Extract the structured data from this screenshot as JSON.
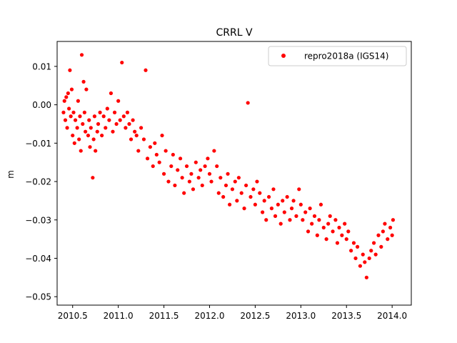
{
  "chart_data": {
    "type": "scatter",
    "title": "CRRL V",
    "xlabel": "",
    "ylabel": "m",
    "xlim": [
      2010.33,
      2014.21
    ],
    "ylim": [
      -0.0522,
      0.0165
    ],
    "xticks": [
      2010.5,
      2011.0,
      2011.5,
      2012.0,
      2012.5,
      2013.0,
      2013.5,
      2014.0
    ],
    "xtick_labels": [
      "2010.5",
      "2011.0",
      "2011.5",
      "2012.0",
      "2012.5",
      "2013.0",
      "2013.5",
      "2014.0"
    ],
    "yticks": [
      0.01,
      0.0,
      -0.01,
      -0.02,
      -0.03,
      -0.04,
      -0.05
    ],
    "ytick_labels": [
      "0.01",
      "0.00",
      "−0.01",
      "−0.02",
      "−0.03",
      "−0.04",
      "−0.05"
    ],
    "grid": false,
    "legend_position": "top-right",
    "marker_color": "#ff0000",
    "series": [
      {
        "name": "repro2018a (IGS14)",
        "color": "#ff0000",
        "x": [
          2010.4,
          2010.41,
          2010.42,
          2010.43,
          2010.44,
          2010.45,
          2010.46,
          2010.47,
          2010.48,
          2010.49,
          2010.5,
          2010.51,
          2010.52,
          2010.53,
          2010.55,
          2010.56,
          2010.57,
          2010.58,
          2010.59,
          2010.6,
          2010.61,
          2010.62,
          2010.63,
          2010.64,
          2010.65,
          2010.67,
          2010.68,
          2010.69,
          2010.7,
          2010.72,
          2010.73,
          2010.74,
          2010.75,
          2010.77,
          2010.78,
          2010.8,
          2010.82,
          2010.84,
          2010.86,
          2010.88,
          2010.9,
          2010.92,
          2010.94,
          2010.96,
          2010.98,
          2011.0,
          2011.02,
          2011.04,
          2011.06,
          2011.08,
          2011.1,
          2011.12,
          2011.14,
          2011.16,
          2011.18,
          2011.2,
          2011.22,
          2011.25,
          2011.28,
          2011.3,
          2011.32,
          2011.35,
          2011.38,
          2011.4,
          2011.42,
          2011.45,
          2011.48,
          2011.5,
          2011.52,
          2011.55,
          2011.58,
          2011.6,
          2011.62,
          2011.65,
          2011.68,
          2011.7,
          2011.72,
          2011.75,
          2011.78,
          2011.8,
          2011.82,
          2011.85,
          2011.88,
          2011.9,
          2011.92,
          2011.95,
          2011.98,
          2012.0,
          2012.02,
          2012.05,
          2012.08,
          2012.1,
          2012.12,
          2012.15,
          2012.18,
          2012.2,
          2012.22,
          2012.25,
          2012.28,
          2012.3,
          2012.32,
          2012.35,
          2012.38,
          2012.4,
          2012.42,
          2012.45,
          2012.48,
          2012.5,
          2012.52,
          2012.55,
          2012.58,
          2012.6,
          2012.62,
          2012.65,
          2012.68,
          2012.7,
          2012.72,
          2012.75,
          2012.78,
          2012.8,
          2012.82,
          2012.85,
          2012.88,
          2012.9,
          2012.92,
          2012.95,
          2012.98,
          2013.0,
          2013.02,
          2013.05,
          2013.08,
          2013.1,
          2013.12,
          2013.15,
          2013.18,
          2013.2,
          2013.22,
          2013.25,
          2013.28,
          2013.3,
          2013.32,
          2013.35,
          2013.38,
          2013.4,
          2013.42,
          2013.45,
          2013.48,
          2013.5,
          2013.52,
          2013.55,
          2013.58,
          2013.6,
          2013.62,
          2013.65,
          2013.68,
          2013.7,
          2013.72,
          2013.75,
          2013.77,
          2013.8,
          2013.82,
          2013.85,
          2013.88,
          2013.9,
          2013.92,
          2013.95,
          2013.98,
          2014.0,
          2014.01
        ],
        "y": [
          -0.002,
          0.001,
          -0.004,
          0.002,
          -0.006,
          0.003,
          -0.001,
          0.009,
          -0.003,
          0.004,
          -0.008,
          -0.002,
          -0.01,
          -0.004,
          -0.006,
          0.001,
          -0.009,
          -0.003,
          -0.012,
          0.013,
          -0.005,
          0.006,
          -0.002,
          -0.007,
          0.004,
          -0.008,
          -0.004,
          -0.011,
          -0.006,
          -0.019,
          -0.009,
          -0.003,
          -0.012,
          -0.007,
          -0.005,
          -0.002,
          -0.008,
          -0.003,
          -0.006,
          -0.001,
          -0.004,
          0.003,
          -0.007,
          -0.002,
          -0.005,
          0.001,
          -0.004,
          0.011,
          -0.003,
          -0.006,
          -0.002,
          -0.005,
          -0.009,
          -0.004,
          -0.007,
          -0.008,
          -0.012,
          -0.006,
          -0.009,
          0.009,
          -0.014,
          -0.011,
          -0.016,
          -0.01,
          -0.013,
          -0.015,
          -0.008,
          -0.018,
          -0.012,
          -0.02,
          -0.016,
          -0.013,
          -0.021,
          -0.017,
          -0.014,
          -0.019,
          -0.023,
          -0.016,
          -0.02,
          -0.018,
          -0.022,
          -0.015,
          -0.019,
          -0.017,
          -0.021,
          -0.016,
          -0.014,
          -0.018,
          -0.02,
          -0.012,
          -0.016,
          -0.023,
          -0.019,
          -0.024,
          -0.021,
          -0.018,
          -0.026,
          -0.022,
          -0.02,
          -0.025,
          -0.019,
          -0.023,
          -0.027,
          -0.021,
          0.0005,
          -0.024,
          -0.022,
          -0.026,
          -0.02,
          -0.023,
          -0.028,
          -0.025,
          -0.03,
          -0.024,
          -0.027,
          -0.022,
          -0.029,
          -0.026,
          -0.031,
          -0.025,
          -0.028,
          -0.024,
          -0.03,
          -0.027,
          -0.025,
          -0.029,
          -0.022,
          -0.026,
          -0.03,
          -0.028,
          -0.033,
          -0.027,
          -0.031,
          -0.029,
          -0.034,
          -0.03,
          -0.026,
          -0.032,
          -0.035,
          -0.031,
          -0.029,
          -0.033,
          -0.03,
          -0.036,
          -0.032,
          -0.034,
          -0.031,
          -0.035,
          -0.033,
          -0.038,
          -0.036,
          -0.04,
          -0.037,
          -0.042,
          -0.039,
          -0.041,
          -0.045,
          -0.04,
          -0.038,
          -0.036,
          -0.039,
          -0.034,
          -0.037,
          -0.033,
          -0.031,
          -0.035,
          -0.032,
          -0.034,
          -0.03
        ]
      }
    ]
  }
}
